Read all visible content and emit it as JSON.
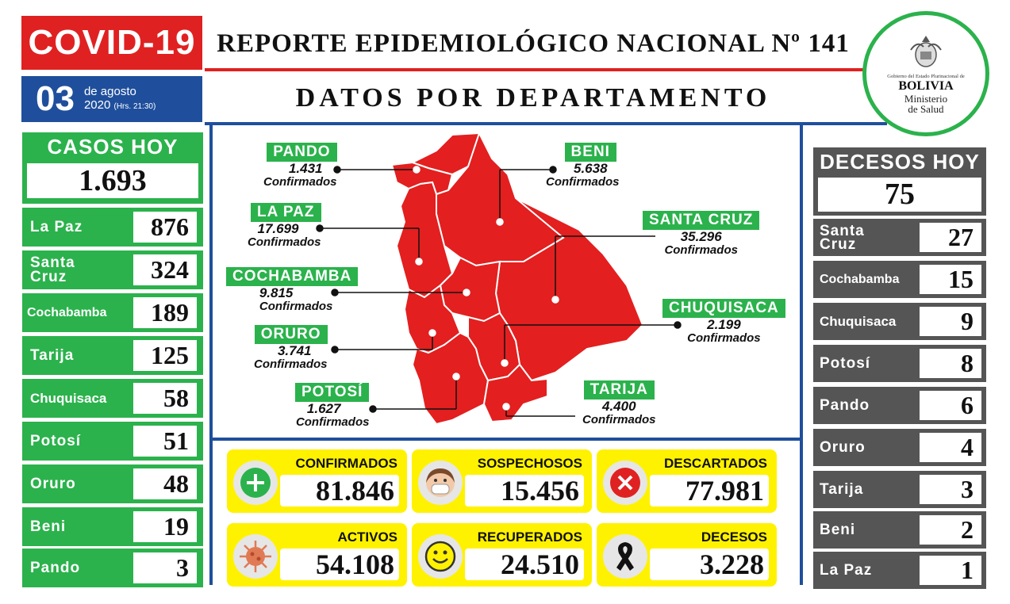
{
  "header": {
    "covid_label": "COVID-19",
    "date_day": "03",
    "date_line1": "de agosto",
    "date_year": "2020",
    "date_hrs": "(Hrs. 21:30)",
    "report_title": "REPORTE EPIDEMIOLÓGICO NACIONAL Nº 141",
    "section_title": "DATOS POR DEPARTAMENTO"
  },
  "logo": {
    "line1": "Gobierno del Estado Plurinacional de",
    "line2": "BOLIVIA",
    "line3": "Ministerio",
    "line4": "de Salud"
  },
  "casos_hoy": {
    "label": "CASOS HOY",
    "total": "1.693",
    "rows": [
      {
        "name": "La Paz",
        "value": "876"
      },
      {
        "name": "Santa Cruz",
        "value": "324"
      },
      {
        "name": "Cochabamba",
        "value": "189"
      },
      {
        "name": "Tarija",
        "value": "125"
      },
      {
        "name": "Chuquisaca",
        "value": "58"
      },
      {
        "name": "Potosí",
        "value": "51"
      },
      {
        "name": "Oruro",
        "value": "48"
      },
      {
        "name": "Beni",
        "value": "19"
      },
      {
        "name": "Pando",
        "value": "3"
      }
    ]
  },
  "decesos_hoy": {
    "label": "DECESOS HOY",
    "total": "75",
    "rows": [
      {
        "name": "Santa Cruz",
        "value": "27"
      },
      {
        "name": "Cochabamba",
        "value": "15"
      },
      {
        "name": "Chuquisaca",
        "value": "9"
      },
      {
        "name": "Potosí",
        "value": "8"
      },
      {
        "name": "Pando",
        "value": "6"
      },
      {
        "name": "Oruro",
        "value": "4"
      },
      {
        "name": "Tarija",
        "value": "3"
      },
      {
        "name": "Beni",
        "value": "2"
      },
      {
        "name": "La Paz",
        "value": "1"
      }
    ]
  },
  "map": {
    "confirmed_word": "Confirmados",
    "departments": {
      "pando": {
        "name": "PANDO",
        "value": "1.431"
      },
      "la_paz": {
        "name": "LA PAZ",
        "value": "17.699"
      },
      "cochabamba": {
        "name": "COCHABAMBA",
        "value": "9.815"
      },
      "oruro": {
        "name": "ORURO",
        "value": "3.741"
      },
      "potosi": {
        "name": "POTOSÍ",
        "value": "1.627"
      },
      "beni": {
        "name": "BENI",
        "value": "5.638"
      },
      "santa_cruz": {
        "name": "SANTA CRUZ",
        "value": "35.296"
      },
      "chuquisaca": {
        "name": "CHUQUISACA",
        "value": "2.199"
      },
      "tarija": {
        "name": "TARIJA",
        "value": "4.400"
      }
    },
    "map_color": "#e31f1f"
  },
  "totals": {
    "confirmados": {
      "label": "CONFIRMADOS",
      "value": "81.846"
    },
    "sospechosos": {
      "label": "SOSPECHOSOS",
      "value": "15.456"
    },
    "descartados": {
      "label": "DESCARTADOS",
      "value": "77.981"
    },
    "activos": {
      "label": "ACTIVOS",
      "value": "54.108"
    },
    "recuperados": {
      "label": "RECUPERADOS",
      "value": "24.510"
    },
    "decesos": {
      "label": "DECESOS",
      "value": "3.228"
    }
  },
  "colors": {
    "red": "#e02121",
    "blue": "#1f4f9c",
    "green": "#2bb24c",
    "gray": "#555555",
    "yellow": "#fff200"
  }
}
